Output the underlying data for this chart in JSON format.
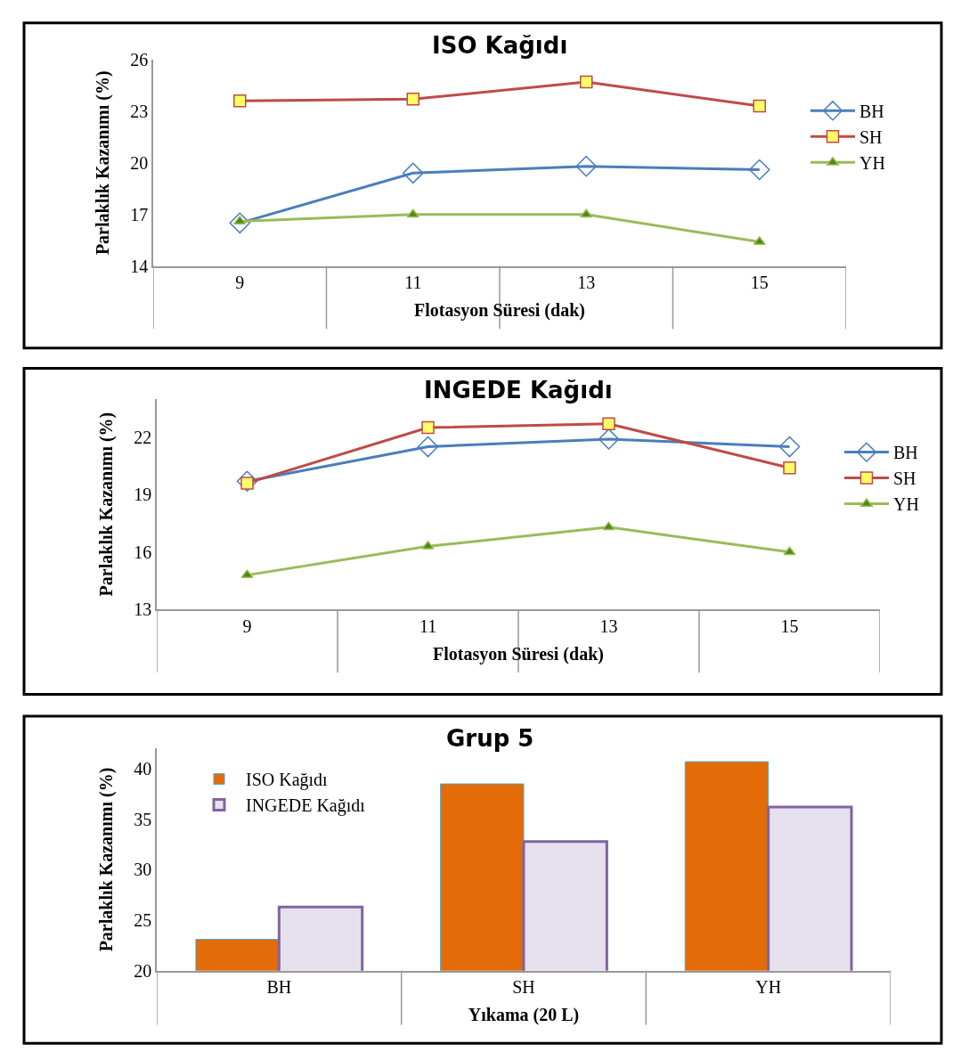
{
  "chart_data": [
    {
      "type": "line",
      "title": "ISO Kağıdı",
      "xlabel": "Flotasyon Süresi (dak)",
      "ylabel": "Parlaklık Kazanımı (%)",
      "categories": [
        "9",
        "11",
        "13",
        "15"
      ],
      "ylim": [
        14,
        26
      ],
      "yticks": [
        14,
        17,
        20,
        23,
        26
      ],
      "legend": "right",
      "grid": false,
      "series": [
        {
          "name": "BH",
          "color": "#4a7ebb",
          "marker": "diamond",
          "values": [
            16.5,
            19.4,
            19.8,
            19.6
          ]
        },
        {
          "name": "SH",
          "color": "#be4b48",
          "marker": "square",
          "values": [
            23.6,
            23.7,
            24.7,
            23.3
          ]
        },
        {
          "name": "YH",
          "color": "#9bbb59",
          "marker": "triangle",
          "values": [
            16.6,
            17.0,
            17.0,
            15.4
          ]
        }
      ]
    },
    {
      "type": "line",
      "title": "INGEDE Kağıdı",
      "xlabel": "Flotasyon Süresi (dak)",
      "ylabel": "Parlaklık Kazanımı (%)",
      "categories": [
        "9",
        "11",
        "13",
        "15"
      ],
      "ylim": [
        13,
        24
      ],
      "yticks": [
        13,
        16,
        19,
        22
      ],
      "legend": "right",
      "grid": false,
      "series": [
        {
          "name": "BH",
          "color": "#4a7ebb",
          "marker": "diamond",
          "values": [
            19.7,
            21.5,
            21.9,
            21.5
          ]
        },
        {
          "name": "SH",
          "color": "#be4b48",
          "marker": "square",
          "values": [
            19.6,
            22.5,
            22.7,
            20.4
          ]
        },
        {
          "name": "YH",
          "color": "#9bbb59",
          "marker": "triangle",
          "values": [
            14.8,
            16.3,
            17.3,
            16.0
          ]
        }
      ]
    },
    {
      "type": "bar",
      "title": "Grup 5",
      "xlabel": "Yıkama (20 L)",
      "ylabel": "Parlaklık Kazanımı (%)",
      "categories": [
        "BH",
        "SH",
        "YH"
      ],
      "ylim": [
        20,
        42
      ],
      "yticks": [
        20,
        25,
        30,
        35,
        40
      ],
      "legend": "top left",
      "grid": false,
      "series": [
        {
          "name": "ISO Kağıdı",
          "color": "#e36c09",
          "values": [
            23.1,
            38.5,
            40.7
          ]
        },
        {
          "name": "INGEDE Kağıdı",
          "color": "#e6e0ec",
          "values": [
            26.3,
            32.8,
            36.2
          ]
        }
      ]
    }
  ]
}
